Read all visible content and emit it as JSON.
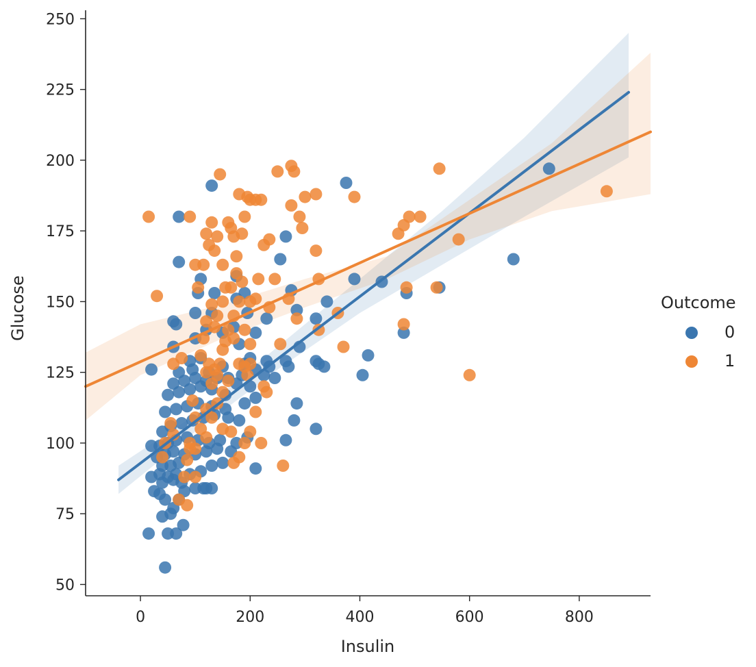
{
  "chart_data": {
    "type": "scatter",
    "xlabel": "Insulin",
    "ylabel": "Glucose",
    "xlim": [
      -100,
      930
    ],
    "ylim": [
      46,
      253
    ],
    "xticks": [
      0,
      200,
      400,
      600,
      800
    ],
    "yticks": [
      50,
      75,
      100,
      125,
      150,
      175,
      200,
      225,
      250
    ],
    "grid": false,
    "legend": {
      "title": "Outcome",
      "placement": "right"
    },
    "series": [
      {
        "name": "0",
        "color": "#3a76af",
        "points": [
          [
            15,
            68
          ],
          [
            45,
            56
          ],
          [
            50,
            68
          ],
          [
            65,
            68
          ],
          [
            78,
            71
          ],
          [
            40,
            74
          ],
          [
            55,
            75
          ],
          [
            60,
            77
          ],
          [
            45,
            80
          ],
          [
            35,
            82
          ],
          [
            70,
            80
          ],
          [
            25,
            83
          ],
          [
            80,
            83
          ],
          [
            100,
            84
          ],
          [
            115,
            84
          ],
          [
            120,
            84
          ],
          [
            130,
            84
          ],
          [
            40,
            86
          ],
          [
            60,
            87
          ],
          [
            75,
            86
          ],
          [
            20,
            88
          ],
          [
            35,
            89
          ],
          [
            50,
            88
          ],
          [
            65,
            89
          ],
          [
            90,
            89
          ],
          [
            110,
            90
          ],
          [
            130,
            92
          ],
          [
            150,
            93
          ],
          [
            210,
            91
          ],
          [
            40,
            92
          ],
          [
            55,
            92
          ],
          [
            70,
            93
          ],
          [
            30,
            95
          ],
          [
            45,
            96
          ],
          [
            60,
            97
          ],
          [
            80,
            96
          ],
          [
            100,
            96
          ],
          [
            120,
            97
          ],
          [
            140,
            98
          ],
          [
            165,
            97
          ],
          [
            20,
            99
          ],
          [
            35,
            99
          ],
          [
            50,
            100
          ],
          [
            65,
            101
          ],
          [
            85,
            102
          ],
          [
            105,
            101
          ],
          [
            125,
            100
          ],
          [
            145,
            101
          ],
          [
            175,
            100
          ],
          [
            195,
            102
          ],
          [
            265,
            101
          ],
          [
            320,
            105
          ],
          [
            40,
            104
          ],
          [
            55,
            106
          ],
          [
            75,
            107
          ],
          [
            95,
            108
          ],
          [
            115,
            109
          ],
          [
            135,
            110
          ],
          [
            160,
            109
          ],
          [
            180,
            108
          ],
          [
            280,
            108
          ],
          [
            45,
            111
          ],
          [
            65,
            112
          ],
          [
            85,
            113
          ],
          [
            105,
            114
          ],
          [
            130,
            113
          ],
          [
            155,
            112
          ],
          [
            190,
            114
          ],
          [
            210,
            116
          ],
          [
            285,
            114
          ],
          [
            50,
            117
          ],
          [
            70,
            118
          ],
          [
            90,
            119
          ],
          [
            110,
            120
          ],
          [
            130,
            119
          ],
          [
            155,
            117
          ],
          [
            175,
            121
          ],
          [
            200,
            120
          ],
          [
            60,
            121
          ],
          [
            80,
            122
          ],
          [
            100,
            123
          ],
          [
            120,
            122
          ],
          [
            140,
            123
          ],
          [
            160,
            123
          ],
          [
            185,
            124
          ],
          [
            225,
            124
          ],
          [
            245,
            123
          ],
          [
            405,
            124
          ],
          [
            70,
            125
          ],
          [
            95,
            126
          ],
          [
            125,
            125
          ],
          [
            150,
            127
          ],
          [
            190,
            128
          ],
          [
            210,
            126
          ],
          [
            230,
            129
          ],
          [
            270,
            127
          ],
          [
            335,
            127
          ],
          [
            20,
            126
          ],
          [
            90,
            129
          ],
          [
            110,
            130
          ],
          [
            200,
            130
          ],
          [
            265,
            129
          ],
          [
            325,
            128
          ],
          [
            415,
            131
          ],
          [
            180,
            135
          ],
          [
            290,
            134
          ],
          [
            60,
            134
          ],
          [
            100,
            137
          ],
          [
            150,
            139
          ],
          [
            210,
            139
          ],
          [
            480,
            139
          ],
          [
            120,
            140
          ],
          [
            170,
            141
          ],
          [
            230,
            144
          ],
          [
            60,
            143
          ],
          [
            65,
            142
          ],
          [
            100,
            146
          ],
          [
            130,
            146
          ],
          [
            195,
            146
          ],
          [
            285,
            147
          ],
          [
            320,
            144
          ],
          [
            340,
            150
          ],
          [
            175,
            151
          ],
          [
            105,
            153
          ],
          [
            135,
            153
          ],
          [
            190,
            153
          ],
          [
            275,
            154
          ],
          [
            485,
            153
          ],
          [
            545,
            155
          ],
          [
            110,
            158
          ],
          [
            175,
            159
          ],
          [
            390,
            158
          ],
          [
            440,
            157
          ],
          [
            680,
            165
          ],
          [
            70,
            164
          ],
          [
            255,
            165
          ],
          [
            265,
            173
          ],
          [
            130,
            191
          ],
          [
            375,
            192
          ],
          [
            745,
            197
          ],
          [
            70,
            180
          ],
          [
            320,
            129
          ],
          [
            235,
            127
          ]
        ]
      },
      {
        "name": "1",
        "color": "#ee8635",
        "points": [
          [
            15,
            180
          ],
          [
            30,
            152
          ],
          [
            90,
            180
          ],
          [
            100,
            163
          ],
          [
            105,
            155
          ],
          [
            115,
            163
          ],
          [
            120,
            174
          ],
          [
            125,
            170
          ],
          [
            130,
            178
          ],
          [
            135,
            168
          ],
          [
            140,
            173
          ],
          [
            145,
            195
          ],
          [
            150,
            163
          ],
          [
            160,
            178
          ],
          [
            165,
            176
          ],
          [
            170,
            173
          ],
          [
            175,
            166
          ],
          [
            180,
            188
          ],
          [
            185,
            174
          ],
          [
            190,
            180
          ],
          [
            195,
            187
          ],
          [
            200,
            186
          ],
          [
            210,
            186
          ],
          [
            220,
            186
          ],
          [
            225,
            170
          ],
          [
            235,
            172
          ],
          [
            250,
            196
          ],
          [
            275,
            198
          ],
          [
            280,
            196
          ],
          [
            275,
            184
          ],
          [
            290,
            180
          ],
          [
            295,
            176
          ],
          [
            300,
            187
          ],
          [
            320,
            188
          ],
          [
            320,
            168
          ],
          [
            390,
            187
          ],
          [
            470,
            174
          ],
          [
            480,
            177
          ],
          [
            490,
            180
          ],
          [
            510,
            180
          ],
          [
            545,
            197
          ],
          [
            580,
            172
          ],
          [
            850,
            189
          ],
          [
            485,
            155
          ],
          [
            540,
            155
          ],
          [
            480,
            142
          ],
          [
            600,
            124
          ],
          [
            370,
            134
          ],
          [
            360,
            146
          ],
          [
            325,
            158
          ],
          [
            325,
            140
          ],
          [
            285,
            144
          ],
          [
            270,
            151
          ],
          [
            245,
            158
          ],
          [
            235,
            148
          ],
          [
            215,
            158
          ],
          [
            210,
            151
          ],
          [
            200,
            150
          ],
          [
            185,
            157
          ],
          [
            175,
            160
          ],
          [
            165,
            155
          ],
          [
            155,
            155
          ],
          [
            150,
            150
          ],
          [
            140,
            145
          ],
          [
            135,
            141
          ],
          [
            130,
            149
          ],
          [
            120,
            143
          ],
          [
            115,
            137
          ],
          [
            110,
            131
          ],
          [
            125,
            128
          ],
          [
            135,
            126
          ],
          [
            145,
            128
          ],
          [
            155,
            136
          ],
          [
            170,
            137
          ],
          [
            180,
            128
          ],
          [
            190,
            127
          ],
          [
            195,
            124
          ],
          [
            200,
            128
          ],
          [
            160,
            122
          ],
          [
            150,
            118
          ],
          [
            140,
            114
          ],
          [
            130,
            109
          ],
          [
            120,
            102
          ],
          [
            110,
            105
          ],
          [
            100,
            109
          ],
          [
            95,
            115
          ],
          [
            90,
            100
          ],
          [
            90,
            98
          ],
          [
            85,
            94
          ],
          [
            80,
            88
          ],
          [
            70,
            80
          ],
          [
            85,
            78
          ],
          [
            100,
            88
          ],
          [
            170,
            93
          ],
          [
            180,
            95
          ],
          [
            190,
            100
          ],
          [
            200,
            104
          ],
          [
            210,
            111
          ],
          [
            230,
            118
          ],
          [
            165,
            104
          ],
          [
            60,
            128
          ],
          [
            75,
            130
          ],
          [
            55,
            107
          ],
          [
            60,
            103
          ],
          [
            120,
            125
          ],
          [
            130,
            121
          ],
          [
            140,
            124
          ],
          [
            150,
            133
          ],
          [
            160,
            140
          ],
          [
            170,
            145
          ],
          [
            180,
            150
          ],
          [
            190,
            140
          ],
          [
            200,
            135
          ],
          [
            255,
            135
          ],
          [
            260,
            92
          ],
          [
            220,
            100
          ],
          [
            225,
            120
          ],
          [
            150,
            105
          ],
          [
            120,
            112
          ],
          [
            100,
            98
          ],
          [
            40,
            95
          ],
          [
            45,
            100
          ]
        ]
      }
    ],
    "regression": [
      {
        "name": "0",
        "color": "#3a76af",
        "x": [
          -40,
          890
        ],
        "y": [
          87,
          224
        ],
        "ci_x": [
          -40,
          100,
          250,
          400,
          550,
          700,
          890
        ],
        "ci_lower": [
          82,
          104,
          126,
          146,
          163,
          180,
          201
        ],
        "ci_upper": [
          92,
          110,
          134,
          158,
          182,
          208,
          245
        ]
      },
      {
        "name": "1",
        "color": "#ee8635",
        "x": [
          -100,
          930
        ],
        "y": [
          120,
          210
        ],
        "ci_x": [
          -100,
          0,
          150,
          300,
          450,
          600,
          750,
          930
        ],
        "ci_lower": [
          108,
          124,
          137,
          148,
          158,
          172,
          182,
          188
        ],
        "ci_upper": [
          132,
          142,
          149,
          158,
          166,
          186,
          206,
          238
        ]
      }
    ]
  }
}
